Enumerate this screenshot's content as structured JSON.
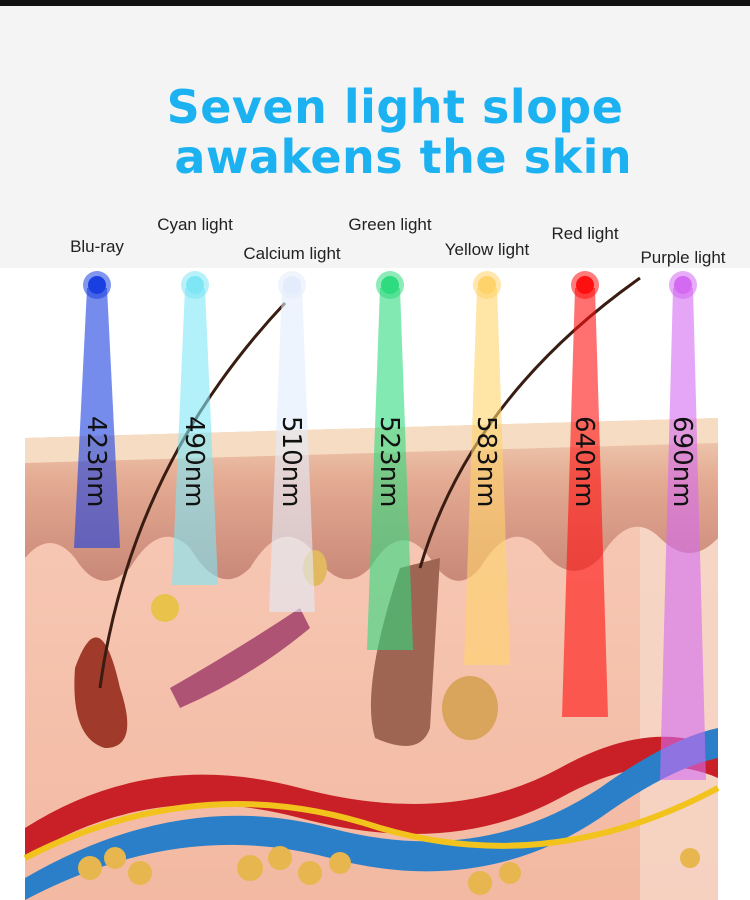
{
  "title": {
    "line1": "Seven light slope",
    "line2": " awakens the skin"
  },
  "colors": {
    "title": "#1cb2f2"
  },
  "lights": [
    {
      "name": "Blu-ray",
      "wavelength": "423nm",
      "color": "#1a3fe0"
    },
    {
      "name": "Cyan light",
      "wavelength": "490nm",
      "color": "#7fe6f6"
    },
    {
      "name": "Calcium light",
      "wavelength": "510nm",
      "color": "#e3ecfb"
    },
    {
      "name": "Green light",
      "wavelength": "523nm",
      "color": "#2edb7f"
    },
    {
      "name": "Yellow light",
      "wavelength": "583nm",
      "color": "#ffd36b"
    },
    {
      "name": "Red light",
      "wavelength": "640nm",
      "color": "#ff1010"
    },
    {
      "name": "Purple light",
      "wavelength": "690nm",
      "color": "#d46af2"
    }
  ]
}
